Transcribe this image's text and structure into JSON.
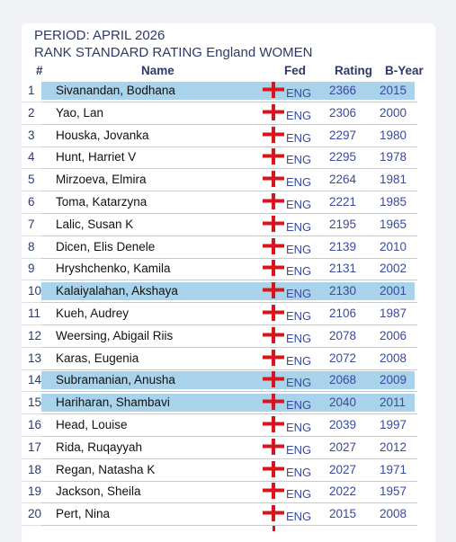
{
  "title": {
    "period": "PERIOD: APRIL 2026",
    "subtitle": "RANK STANDARD RATING England WOMEN"
  },
  "columns": {
    "rank": "#",
    "name": "Name",
    "fed": "Fed",
    "rating": "Rating",
    "byear": "B-Year"
  },
  "colors": {
    "highlight": "#a9d3ea",
    "flag_red": "#d8141d",
    "text_blue": "#3a4a9c"
  },
  "rows": [
    {
      "rank": "1",
      "name": "Sivanandan, Bodhana",
      "flag": "england-flag-icon",
      "fed": "ENG",
      "rating": "2366",
      "byear": "2015",
      "highlighted": true
    },
    {
      "rank": "2",
      "name": "Yao, Lan",
      "flag": "england-flag-icon",
      "fed": "ENG",
      "rating": "2306",
      "byear": "2000",
      "highlighted": false
    },
    {
      "rank": "3",
      "name": "Houska, Jovanka",
      "flag": "england-flag-icon",
      "fed": "ENG",
      "rating": "2297",
      "byear": "1980",
      "highlighted": false
    },
    {
      "rank": "4",
      "name": "Hunt, Harriet V",
      "flag": "england-flag-icon",
      "fed": "ENG",
      "rating": "2295",
      "byear": "1978",
      "highlighted": false
    },
    {
      "rank": "5",
      "name": "Mirzoeva, Elmira",
      "flag": "england-flag-icon",
      "fed": "ENG",
      "rating": "2264",
      "byear": "1981",
      "highlighted": false
    },
    {
      "rank": "6",
      "name": "Toma, Katarzyna",
      "flag": "england-flag-icon",
      "fed": "ENG",
      "rating": "2221",
      "byear": "1985",
      "highlighted": false
    },
    {
      "rank": "7",
      "name": "Lalic, Susan K",
      "flag": "england-flag-icon",
      "fed": "ENG",
      "rating": "2195",
      "byear": "1965",
      "highlighted": false
    },
    {
      "rank": "8",
      "name": "Dicen, Elis Denele",
      "flag": "england-flag-icon",
      "fed": "ENG",
      "rating": "2139",
      "byear": "2010",
      "highlighted": false
    },
    {
      "rank": "9",
      "name": "Hryshchenko, Kamila",
      "flag": "england-flag-icon",
      "fed": "ENG",
      "rating": "2131",
      "byear": "2002",
      "highlighted": false
    },
    {
      "rank": "10",
      "name": "Kalaiyalahan, Akshaya",
      "flag": "england-flag-icon",
      "fed": "ENG",
      "rating": "2130",
      "byear": "2001",
      "highlighted": true
    },
    {
      "rank": "11",
      "name": "Kueh, Audrey",
      "flag": "england-flag-icon",
      "fed": "ENG",
      "rating": "2106",
      "byear": "1987",
      "highlighted": false
    },
    {
      "rank": "12",
      "name": "Weersing, Abigail Riis",
      "flag": "england-flag-icon",
      "fed": "ENG",
      "rating": "2078",
      "byear": "2006",
      "highlighted": false
    },
    {
      "rank": "13",
      "name": "Karas, Eugenia",
      "flag": "england-flag-icon",
      "fed": "ENG",
      "rating": "2072",
      "byear": "2008",
      "highlighted": false
    },
    {
      "rank": "14",
      "name": "Subramanian, Anusha",
      "flag": "england-flag-icon",
      "fed": "ENG",
      "rating": "2068",
      "byear": "2009",
      "highlighted": true
    },
    {
      "rank": "15",
      "name": "Hariharan, Shambavi",
      "flag": "england-flag-icon",
      "fed": "ENG",
      "rating": "2040",
      "byear": "2011",
      "highlighted": true
    },
    {
      "rank": "16",
      "name": "Head, Louise",
      "flag": "england-flag-icon",
      "fed": "ENG",
      "rating": "2039",
      "byear": "1997",
      "highlighted": false
    },
    {
      "rank": "17",
      "name": "Rida, Ruqayyah",
      "flag": "england-flag-icon",
      "fed": "ENG",
      "rating": "2027",
      "byear": "2012",
      "highlighted": false
    },
    {
      "rank": "18",
      "name": "Regan, Natasha K",
      "flag": "england-flag-icon",
      "fed": "ENG",
      "rating": "2027",
      "byear": "1971",
      "highlighted": false
    },
    {
      "rank": "19",
      "name": "Jackson, Sheila",
      "flag": "england-flag-icon",
      "fed": "ENG",
      "rating": "2022",
      "byear": "1957",
      "highlighted": false
    },
    {
      "rank": "20",
      "name": "Pert, Nina",
      "flag": "england-flag-icon",
      "fed": "ENG",
      "rating": "2015",
      "byear": "2008",
      "highlighted": false
    }
  ]
}
